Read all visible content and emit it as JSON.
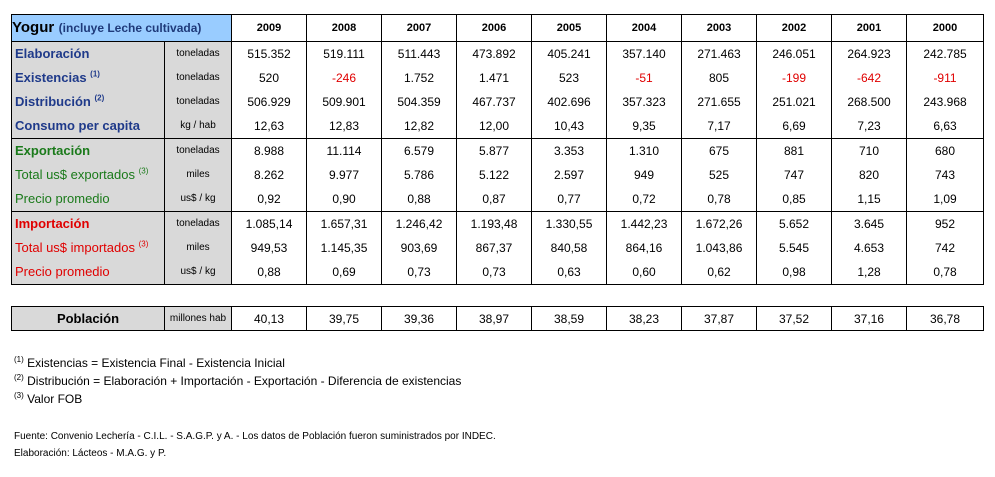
{
  "title": {
    "main": "Yogur",
    "sub": "(incluye Leche cultivada)"
  },
  "years": [
    "2009",
    "2008",
    "2007",
    "2006",
    "2005",
    "2004",
    "2003",
    "2002",
    "2001",
    "2000"
  ],
  "sections": [
    {
      "color": "blue",
      "rows": [
        {
          "label": "Elaboración",
          "sup": "",
          "unit": "toneladas",
          "bold": true,
          "values": [
            "515.352",
            "519.111",
            "511.443",
            "473.892",
            "405.241",
            "357.140",
            "271.463",
            "246.051",
            "264.923",
            "242.785"
          ]
        },
        {
          "label": "Existencias",
          "sup": "(1)",
          "unit": "toneladas",
          "bold": true,
          "values": [
            "520",
            "-246",
            "1.752",
            "1.471",
            "523",
            "-51",
            "805",
            "-199",
            "-642",
            "-911"
          ]
        },
        {
          "label": "Distribución",
          "sup": "(2)",
          "unit": "toneladas",
          "bold": true,
          "values": [
            "506.929",
            "509.901",
            "504.359",
            "467.737",
            "402.696",
            "357.323",
            "271.655",
            "251.021",
            "268.500",
            "243.968"
          ]
        },
        {
          "label": "Consumo per capita",
          "sup": "",
          "unit": "kg / hab",
          "bold": true,
          "values": [
            "12,63",
            "12,83",
            "12,82",
            "12,00",
            "10,43",
            "9,35",
            "7,17",
            "6,69",
            "7,23",
            "6,63"
          ]
        }
      ]
    },
    {
      "color": "green",
      "rows": [
        {
          "label": "Exportación",
          "sup": "",
          "unit": "toneladas",
          "bold": true,
          "values": [
            "8.988",
            "11.114",
            "6.579",
            "5.877",
            "3.353",
            "1.310",
            "675",
            "881",
            "710",
            "680"
          ]
        },
        {
          "label": "Total us$ exportados",
          "sup": "(3)",
          "unit": "miles",
          "bold": false,
          "values": [
            "8.262",
            "9.977",
            "5.786",
            "5.122",
            "2.597",
            "949",
            "525",
            "747",
            "820",
            "743"
          ]
        },
        {
          "label": "Precio promedio",
          "sup": "",
          "unit": "us$ / kg",
          "bold": false,
          "values": [
            "0,92",
            "0,90",
            "0,88",
            "0,87",
            "0,77",
            "0,72",
            "0,78",
            "0,85",
            "1,15",
            "1,09"
          ]
        }
      ]
    },
    {
      "color": "red",
      "rows": [
        {
          "label": "Importación",
          "sup": "",
          "unit": "toneladas",
          "bold": true,
          "values": [
            "1.085,14",
            "1.657,31",
            "1.246,42",
            "1.193,48",
            "1.330,55",
            "1.442,23",
            "1.672,26",
            "5.652",
            "3.645",
            "952"
          ]
        },
        {
          "label": "Total us$ importados",
          "sup": "(3)",
          "unit": "miles",
          "bold": false,
          "values": [
            "949,53",
            "1.145,35",
            "903,69",
            "867,37",
            "840,58",
            "864,16",
            "1.043,86",
            "5.545",
            "4.653",
            "742"
          ]
        },
        {
          "label": "Precio promedio",
          "sup": "",
          "unit": "us$ / kg",
          "bold": false,
          "values": [
            "0,88",
            "0,69",
            "0,73",
            "0,73",
            "0,63",
            "0,60",
            "0,62",
            "0,98",
            "1,28",
            "0,78"
          ]
        }
      ]
    }
  ],
  "poblacion": {
    "label": "Población",
    "unit": "millones hab",
    "values": [
      "40,13",
      "39,75",
      "39,36",
      "38,97",
      "38,59",
      "38,23",
      "37,87",
      "37,52",
      "37,16",
      "36,78"
    ]
  },
  "notes": [
    {
      "sup": "(1)",
      "text": "Existencias = Existencia Final - Existencia Inicial"
    },
    {
      "sup": "(2)",
      "text": "Distribución = Elaboración + Importación - Exportación - Diferencia de existencias"
    },
    {
      "sup": "(3)",
      "text": "Valor FOB"
    }
  ],
  "source": [
    "Fuente: Convenio Lechería - C.I.L. - S.A.G.P. y A. - Los datos de Población fueron suministrados por INDEC.",
    "Elaboración: Lácteos - M.A.G. y P."
  ],
  "colors": {
    "header_bg": "#99ccff",
    "label_bg": "#d9d9d9",
    "blue": "#1f3a8a",
    "green": "#1a7a1a",
    "red": "#e00000"
  }
}
